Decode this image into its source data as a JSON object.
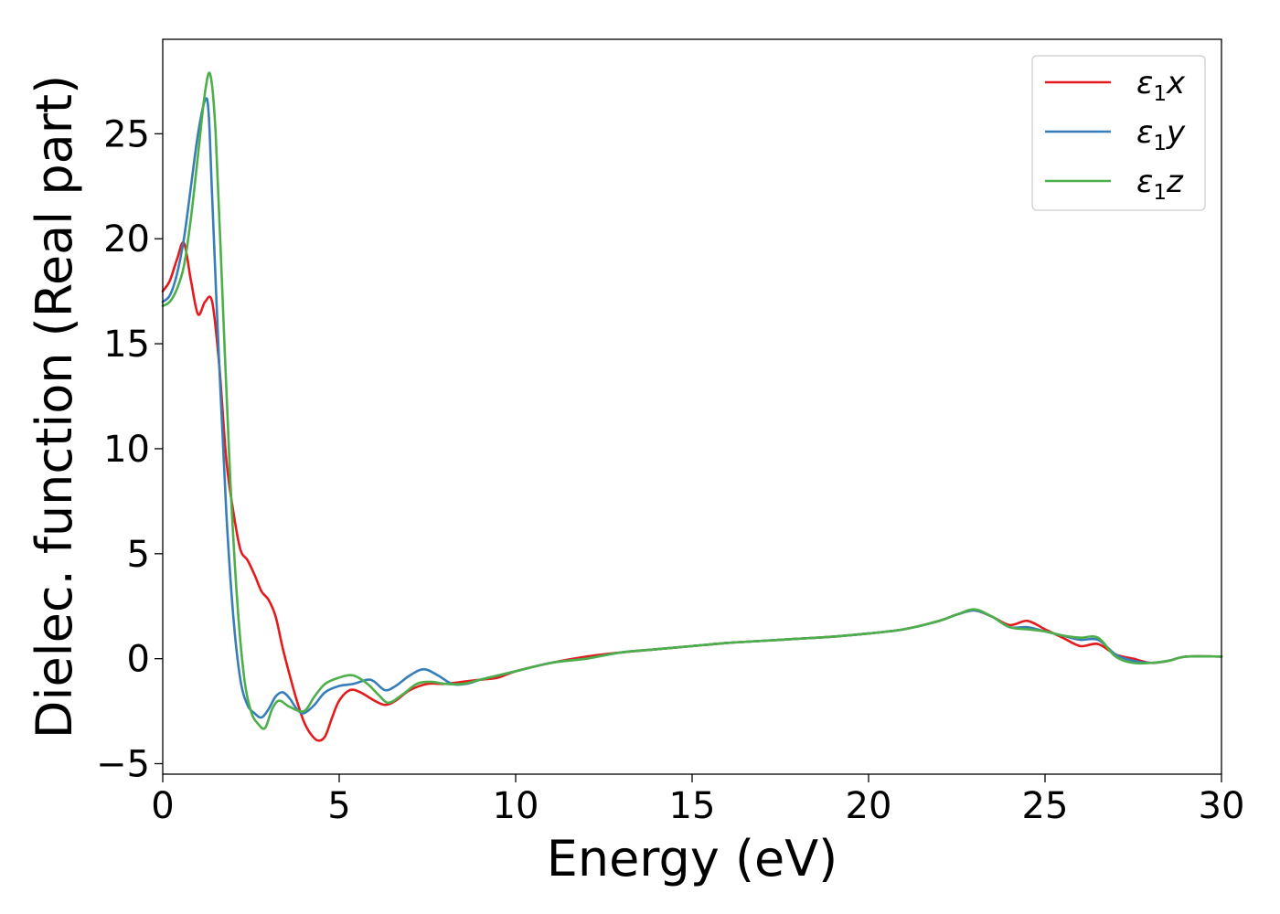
{
  "chart_data": {
    "type": "line",
    "xlabel": "Energy (eV)",
    "ylabel": "Dielec. function (Real part)",
    "xlim": [
      0,
      30
    ],
    "ylim": [
      -5.5,
      29.5
    ],
    "xticks": [
      0,
      5,
      10,
      15,
      20,
      25,
      30
    ],
    "yticks": [
      -5,
      0,
      5,
      10,
      15,
      20,
      25
    ],
    "grid": false,
    "legend_position": "top-right",
    "series": [
      {
        "name": "ε1x",
        "legend": {
          "base": "ε",
          "sub": "1",
          "suffix": "x"
        },
        "color": "#e41a1c",
        "x": [
          0,
          0.2,
          0.4,
          0.6,
          0.8,
          1.0,
          1.2,
          1.4,
          1.6,
          1.8,
          2.0,
          2.2,
          2.4,
          2.6,
          2.8,
          3.0,
          3.2,
          3.4,
          3.6,
          3.8,
          4.0,
          4.2,
          4.4,
          4.6,
          4.8,
          5.0,
          5.3,
          5.6,
          6.0,
          6.3,
          6.6,
          7.0,
          7.5,
          8.0,
          8.5,
          9.0,
          9.5,
          10,
          11,
          12,
          13,
          14,
          15,
          16,
          17,
          18,
          19,
          20,
          21,
          22,
          22.5,
          23,
          23.5,
          24,
          24.5,
          25,
          25.5,
          26,
          26.5,
          27,
          27.5,
          28,
          28.5,
          29,
          30
        ],
        "y": [
          17.5,
          18.0,
          19.0,
          19.8,
          18.0,
          16.4,
          17.0,
          17.0,
          14.0,
          9.5,
          7.0,
          5.2,
          4.7,
          4.0,
          3.2,
          2.8,
          2.0,
          0.5,
          -0.8,
          -2.0,
          -3.0,
          -3.6,
          -3.9,
          -3.7,
          -2.8,
          -2.0,
          -1.5,
          -1.6,
          -2.0,
          -2.2,
          -2.0,
          -1.5,
          -1.2,
          -1.2,
          -1.1,
          -1.0,
          -0.9,
          -0.6,
          -0.2,
          0.1,
          0.3,
          0.45,
          0.6,
          0.75,
          0.85,
          0.95,
          1.05,
          1.2,
          1.4,
          1.8,
          2.1,
          2.3,
          2.0,
          1.6,
          1.8,
          1.4,
          1.0,
          0.6,
          0.7,
          0.2,
          0.0,
          -0.2,
          -0.1,
          0.1,
          0.1
        ]
      },
      {
        "name": "ε1y",
        "legend": {
          "base": "ε",
          "sub": "1",
          "suffix": "y"
        },
        "color": "#377eb8",
        "x": [
          0,
          0.2,
          0.4,
          0.6,
          0.8,
          1.0,
          1.2,
          1.3,
          1.4,
          1.6,
          1.8,
          2.0,
          2.2,
          2.4,
          2.6,
          2.8,
          3.0,
          3.2,
          3.4,
          3.6,
          3.8,
          4.0,
          4.3,
          4.6,
          5.0,
          5.4,
          5.8,
          6.0,
          6.3,
          6.6,
          7.0,
          7.4,
          7.8,
          8.2,
          8.6,
          9.0,
          9.5,
          10,
          11,
          12,
          13,
          14,
          15,
          16,
          17,
          18,
          19,
          20,
          21,
          22,
          22.5,
          23,
          23.5,
          24,
          24.5,
          25,
          25.5,
          26,
          26.5,
          27,
          27.5,
          28,
          28.5,
          29,
          30
        ],
        "y": [
          17.0,
          17.3,
          18.3,
          20.0,
          22.5,
          25.0,
          26.6,
          26.0,
          22.0,
          14.0,
          7.0,
          2.0,
          -1.0,
          -2.2,
          -2.6,
          -2.8,
          -2.4,
          -1.8,
          -1.6,
          -1.9,
          -2.4,
          -2.6,
          -2.2,
          -1.6,
          -1.3,
          -1.2,
          -1.0,
          -1.1,
          -1.5,
          -1.3,
          -0.8,
          -0.5,
          -0.8,
          -1.2,
          -1.2,
          -1.0,
          -0.8,
          -0.6,
          -0.2,
          0.0,
          0.3,
          0.45,
          0.6,
          0.75,
          0.85,
          0.95,
          1.05,
          1.2,
          1.4,
          1.8,
          2.1,
          2.3,
          2.0,
          1.5,
          1.5,
          1.3,
          1.1,
          0.9,
          0.9,
          0.2,
          -0.1,
          -0.2,
          -0.1,
          0.1,
          0.1
        ]
      },
      {
        "name": "ε1z",
        "legend": {
          "base": "ε",
          "sub": "1",
          "suffix": "z"
        },
        "color": "#4daf4a",
        "x": [
          0,
          0.2,
          0.4,
          0.6,
          0.8,
          1.0,
          1.2,
          1.35,
          1.5,
          1.7,
          1.9,
          2.1,
          2.3,
          2.5,
          2.7,
          2.9,
          3.1,
          3.3,
          3.6,
          4.0,
          4.3,
          4.6,
          5.0,
          5.4,
          5.8,
          6.1,
          6.4,
          6.8,
          7.2,
          7.6,
          8.0,
          8.5,
          9.0,
          9.5,
          10,
          11,
          12,
          13,
          14,
          15,
          16,
          17,
          18,
          19,
          20,
          21,
          22,
          22.5,
          23,
          23.5,
          24,
          24.5,
          25,
          25.5,
          26,
          26.5,
          27,
          27.5,
          28,
          28.5,
          29,
          30
        ],
        "y": [
          16.8,
          17.0,
          17.6,
          18.7,
          21.0,
          24.0,
          27.0,
          27.8,
          25.0,
          17.0,
          9.0,
          3.0,
          -0.8,
          -2.5,
          -3.1,
          -3.3,
          -2.4,
          -2.0,
          -2.3,
          -2.5,
          -1.8,
          -1.2,
          -0.9,
          -0.8,
          -1.2,
          -1.7,
          -2.1,
          -1.7,
          -1.2,
          -1.1,
          -1.2,
          -1.2,
          -1.0,
          -0.8,
          -0.6,
          -0.2,
          0.0,
          0.3,
          0.45,
          0.6,
          0.75,
          0.85,
          0.95,
          1.05,
          1.2,
          1.4,
          1.8,
          2.1,
          2.35,
          2.0,
          1.5,
          1.4,
          1.3,
          1.1,
          1.0,
          1.0,
          0.1,
          -0.2,
          -0.2,
          -0.1,
          0.1,
          0.1
        ]
      }
    ]
  }
}
